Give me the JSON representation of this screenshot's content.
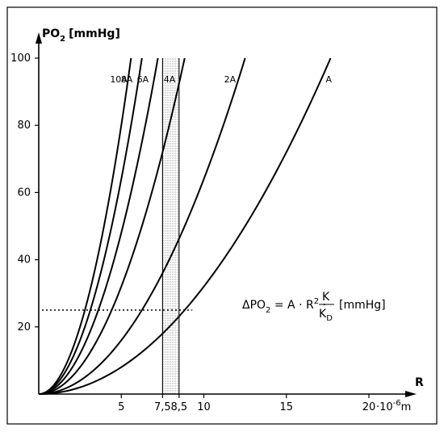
{
  "chart_data": {
    "type": "line",
    "ylabel_main": "PO",
    "ylabel_sub": "2",
    "ylabel_unit": "[mmHg]",
    "xlabel": "R",
    "x_unit_suffix": "·10",
    "x_unit_exp": "-6",
    "x_unit": "m",
    "xlim": [
      0,
      21
    ],
    "ylim": [
      0,
      100
    ],
    "x_ticks": [
      {
        "value": 5,
        "label": "5"
      },
      {
        "value": 7.5,
        "label": "7,5"
      },
      {
        "value": 8.5,
        "label": "8,5"
      },
      {
        "value": 10,
        "label": "10"
      },
      {
        "value": 15,
        "label": "15"
      },
      {
        "value": 20,
        "label": "20"
      }
    ],
    "y_ticks": [
      {
        "value": 20,
        "label": "20"
      },
      {
        "value": 40,
        "label": "40"
      },
      {
        "value": 60,
        "label": "60"
      },
      {
        "value": 80,
        "label": "80"
      },
      {
        "value": 100,
        "label": "100"
      }
    ],
    "formula": {
      "lhs": "ΔPO",
      "lhs_sub": "2",
      "eq": " = A · R",
      "exp": "2",
      "dot": " · ",
      "num": "K",
      "den": "K",
      "den_sub": "D",
      "unit": "[mmHg]"
    },
    "series": [
      {
        "name": "A",
        "multiplier": 1,
        "points": [
          [
            0,
            0
          ],
          [
            5,
            8
          ],
          [
            7.5,
            18
          ],
          [
            8.5,
            23
          ],
          [
            10,
            32
          ],
          [
            15,
            72
          ],
          [
            17.7,
            100
          ]
        ]
      },
      {
        "name": "2A",
        "multiplier": 2,
        "points": [
          [
            0,
            0
          ],
          [
            5,
            16
          ],
          [
            7.5,
            36
          ],
          [
            8.5,
            46
          ],
          [
            10,
            64
          ],
          [
            12.5,
            100
          ]
        ]
      },
      {
        "name": "4A",
        "multiplier": 4,
        "points": [
          [
            0,
            0
          ],
          [
            5,
            32
          ],
          [
            7.5,
            72
          ],
          [
            8.5,
            92
          ],
          [
            8.85,
            100
          ]
        ]
      },
      {
        "name": "6A",
        "multiplier": 6,
        "points": [
          [
            0,
            0
          ],
          [
            5,
            48
          ],
          [
            7.2,
            100
          ]
        ]
      },
      {
        "name": "8A",
        "multiplier": 8,
        "points": [
          [
            0,
            0
          ],
          [
            5,
            64
          ],
          [
            6.25,
            100
          ]
        ]
      },
      {
        "name": "10A",
        "multiplier": 10,
        "points": [
          [
            0,
            0
          ],
          [
            5,
            80
          ],
          [
            5.6,
            100
          ]
        ]
      }
    ],
    "shaded_band": {
      "x_from": 7.5,
      "x_to": 8.5
    },
    "reference_line": {
      "y": 25,
      "x_from": 0,
      "x_to": 9.3,
      "style": "dotted"
    }
  }
}
